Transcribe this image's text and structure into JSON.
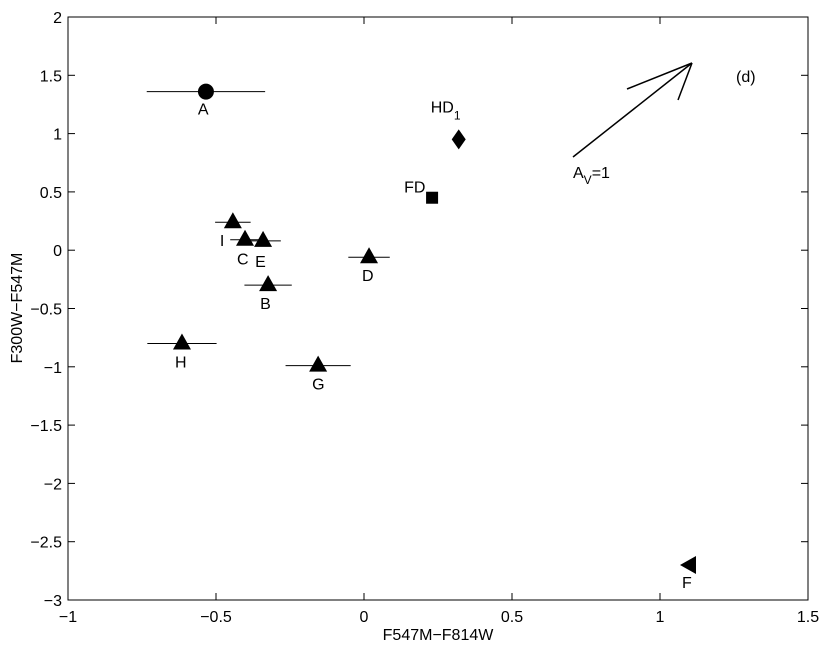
{
  "chart_data": {
    "type": "scatter",
    "xlabel": "F547M−F814W",
    "ylabel": "F300W−F547M",
    "xlim": [
      -1,
      1.5
    ],
    "ylim": [
      -3,
      2
    ],
    "xticks": [
      {
        "value": -1,
        "label": "−1"
      },
      {
        "value": -0.5,
        "label": "−0.5"
      },
      0,
      0.5,
      1,
      1.5
    ],
    "yticks": [
      {
        "value": -3,
        "label": "−3"
      },
      {
        "value": -2.5,
        "label": "−2.5"
      },
      {
        "value": -2,
        "label": "−2"
      },
      {
        "value": -1.5,
        "label": "−1.5"
      },
      {
        "value": -1,
        "label": "−1"
      },
      {
        "value": -0.5,
        "label": "−0.5"
      },
      0,
      0.5,
      1,
      1.5,
      2
    ],
    "color": "#000000",
    "points": [
      {
        "label": "A",
        "marker": "circle",
        "x": -0.534,
        "y": 1.36,
        "xerr": 0.2
      },
      {
        "label": "HD",
        "label_sub": "1",
        "marker": "diamond",
        "x": 0.32,
        "y": 0.95
      },
      {
        "label": "FD",
        "marker": "square",
        "x": 0.23,
        "y": 0.45
      },
      {
        "label": "I",
        "marker": "triangle",
        "x": -0.443,
        "y": 0.24,
        "xerr": 0.06
      },
      {
        "label": "C",
        "marker": "triangle",
        "x": -0.402,
        "y": 0.09,
        "xerr": 0.05
      },
      {
        "label": "E",
        "marker": "triangle",
        "x": -0.341,
        "y": 0.08,
        "xerr": 0.06
      },
      {
        "label": "D",
        "marker": "triangle",
        "x": 0.017,
        "y": -0.06,
        "xerr": 0.07
      },
      {
        "label": "B",
        "marker": "triangle",
        "x": -0.324,
        "y": -0.3,
        "xerr": 0.08
      },
      {
        "label": "H",
        "marker": "triangle",
        "x": -0.615,
        "y": -0.8,
        "xerr": 0.117
      },
      {
        "label": "G",
        "marker": "triangle",
        "x": -0.155,
        "y": -0.99,
        "xerr": 0.11
      },
      {
        "label": "F",
        "marker": "triangle-left",
        "x": 1.098,
        "y": -2.7
      }
    ],
    "vector_label": [
      "A",
      "V",
      "=1"
    ],
    "panel_label": "(d)"
  }
}
